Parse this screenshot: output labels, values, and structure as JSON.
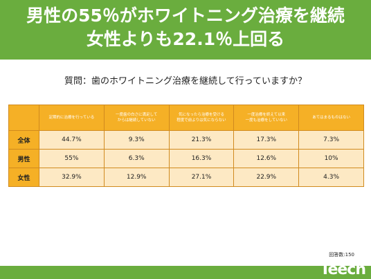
{
  "header": {
    "line1": "男性の55％がホワイトニング治療を継続",
    "line2": "女性よりも22.1％上回る"
  },
  "question": "質問：歯のホワイトニング治療を継続して行っていますか？",
  "table": {
    "columns": [
      "定期的に治療を行っている",
      "一度歯の白さに満足して\nからは継続していない",
      "気になったら治療を受ける\n程度で前よりは気にならない",
      "一度治療を終えて以来\n一度も治療をしていない",
      "あてはまるものはない"
    ],
    "rows": [
      {
        "label": "全体",
        "values": [
          "44.7%",
          "9.3%",
          "21.3%",
          "17.3%",
          "7.3%"
        ]
      },
      {
        "label": "男性",
        "values": [
          "55%",
          "6.3%",
          "16.3%",
          "12.6%",
          "10%"
        ]
      },
      {
        "label": "女性",
        "values": [
          "32.9%",
          "12.9%",
          "27.1%",
          "22.9%",
          "4.3%"
        ]
      }
    ]
  },
  "respondents": "回答数:150",
  "logo": {
    "text": "Teech"
  },
  "colors": {
    "header_green": "#6aad3e",
    "table_header_orange": "#f5b026",
    "table_cell_cream": "#fde9c4",
    "table_border": "#d08a1e"
  }
}
